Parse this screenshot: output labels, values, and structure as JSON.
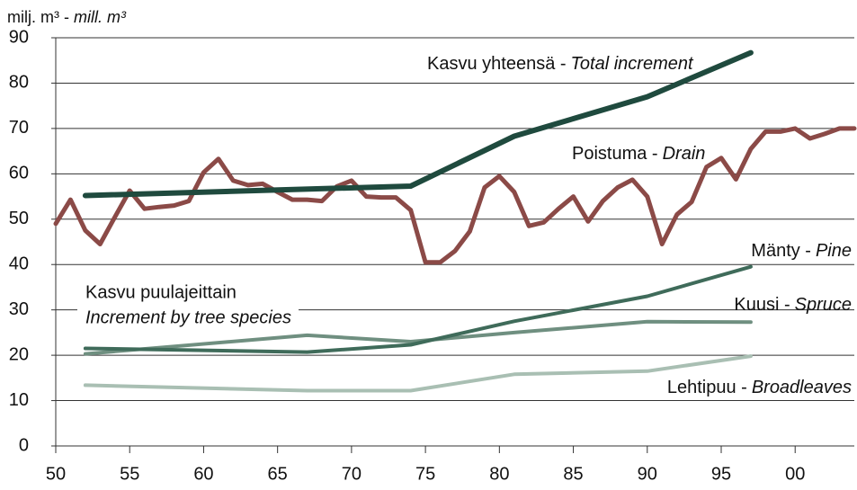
{
  "chart_data": {
    "type": "line",
    "y_label": "milj. m³ -",
    "y_label_en": "mill. m³",
    "note": "Kasvu puulajeittain",
    "note_en": "Increment by tree species",
    "xlim": [
      1950,
      2004
    ],
    "ylim": [
      0,
      90
    ],
    "xticks": [
      {
        "value": 1950,
        "label": "50"
      },
      {
        "value": 1955,
        "label": "55"
      },
      {
        "value": 1960,
        "label": "60"
      },
      {
        "value": 1965,
        "label": "65"
      },
      {
        "value": 1970,
        "label": "70"
      },
      {
        "value": 1975,
        "label": "75"
      },
      {
        "value": 1980,
        "label": "80"
      },
      {
        "value": 1985,
        "label": "85"
      },
      {
        "value": 1990,
        "label": "90"
      },
      {
        "value": 1995,
        "label": "95"
      },
      {
        "value": 2000,
        "label": "00"
      }
    ],
    "yticks": [
      0,
      10,
      20,
      30,
      40,
      50,
      60,
      70,
      80,
      90
    ],
    "grid": true,
    "series": [
      {
        "name": "Kasvu yhteensä -",
        "name_en": "Total increment",
        "color": "#1f4a3e",
        "x": [
          1952,
          1974,
          1981,
          1990,
          1997
        ],
        "values": [
          55.2,
          57.3,
          68.3,
          77,
          86.7
        ]
      },
      {
        "name": "Poistuma -",
        "name_en": "Drain",
        "color": "#8b4a47",
        "x": [
          1950,
          1951,
          1952,
          1953,
          1954,
          1955,
          1956,
          1957,
          1958,
          1959,
          1960,
          1961,
          1962,
          1963,
          1964,
          1965,
          1966,
          1967,
          1968,
          1969,
          1970,
          1971,
          1972,
          1973,
          1974,
          1975,
          1976,
          1977,
          1978,
          1979,
          1980,
          1981,
          1982,
          1983,
          1984,
          1985,
          1986,
          1987,
          1988,
          1989,
          1990,
          1991,
          1992,
          1993,
          1994,
          1995,
          1996,
          1997,
          1998,
          1999,
          2000,
          2001,
          2002,
          2003,
          2004
        ],
        "values": [
          49,
          54.3,
          47.5,
          44.5,
          50.5,
          56.3,
          52.3,
          52.7,
          53,
          54,
          60.3,
          63.3,
          58.5,
          57.5,
          57.8,
          56,
          54.3,
          54.3,
          54,
          57.2,
          58.5,
          55,
          54.8,
          54.8,
          52,
          40.5,
          40.5,
          43,
          47.3,
          57,
          59.5,
          56,
          48.5,
          49.3,
          52.3,
          55,
          49.5,
          54,
          57,
          58.7,
          55,
          44.5,
          51,
          53.8,
          61.5,
          63.5,
          58.8,
          65.5,
          69.3,
          69.3,
          70,
          67.8,
          68.8,
          70,
          70
        ]
      },
      {
        "name": "Mänty -",
        "name_en": "Pine",
        "color": "#3f6b5a",
        "x": [
          1952,
          1967,
          1974,
          1981,
          1990,
          1997
        ],
        "values": [
          21.5,
          20.7,
          22.3,
          27.5,
          33,
          39.5
        ]
      },
      {
        "name": "Kuusi -",
        "name_en": "Spruce",
        "color": "#6f8f80",
        "x": [
          1952,
          1967,
          1974,
          1981,
          1990,
          1997
        ],
        "values": [
          20.3,
          24.4,
          23,
          25,
          27.4,
          27.3
        ]
      },
      {
        "name": "Lehtipuu -",
        "name_en": "Broadleaves",
        "color": "#a9bfb3",
        "x": [
          1952,
          1967,
          1974,
          1981,
          1990,
          1997
        ],
        "values": [
          13.4,
          12.2,
          12.2,
          15.8,
          16.5,
          19.8
        ]
      }
    ]
  }
}
